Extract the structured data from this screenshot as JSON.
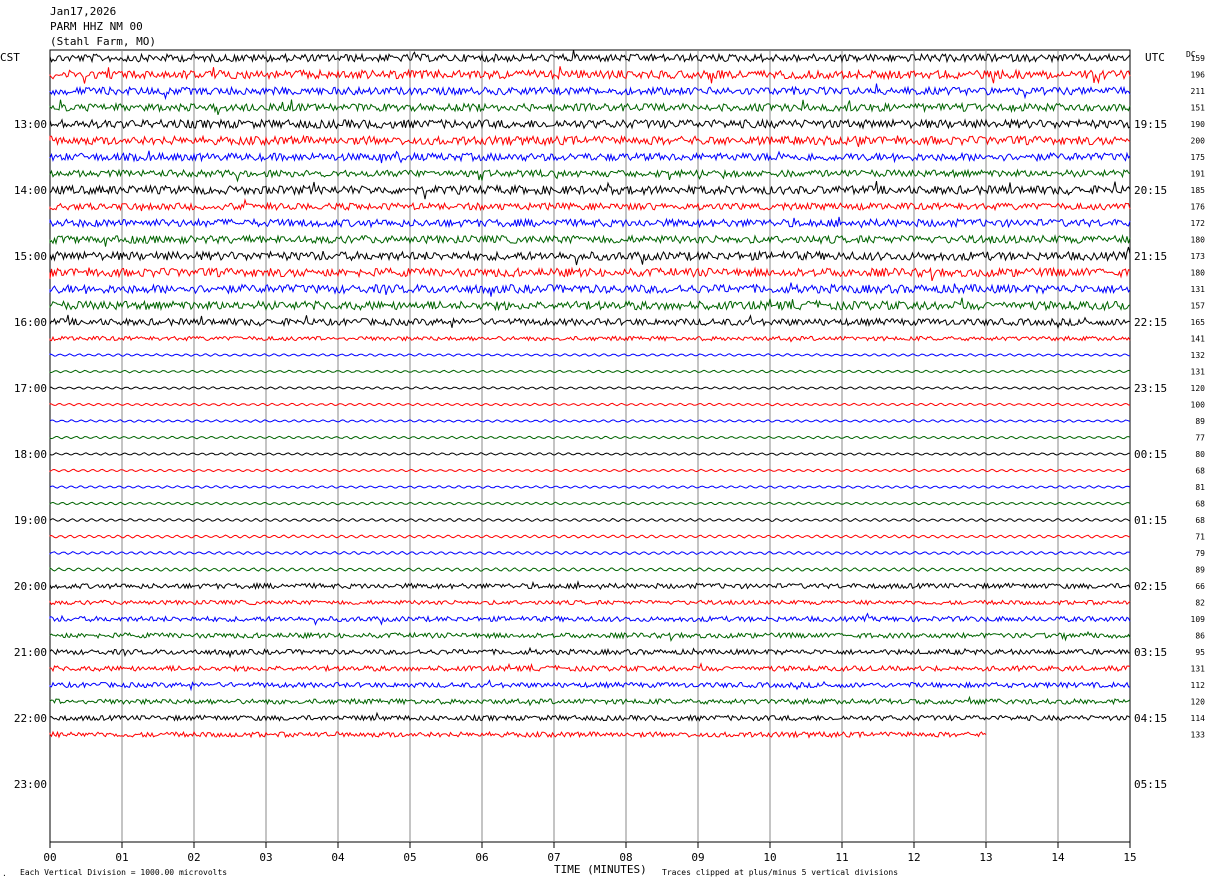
{
  "header": {
    "date": "Jan17,2026",
    "station": "PARM HHZ NM 00",
    "location": "(Stahl Farm, MO)"
  },
  "left_tz": "CST",
  "right_tz": "UTC",
  "dc_label": "DC",
  "footer": {
    "scale": "Each Vertical Division = 1000.00 microvolts",
    "xlabel": "TIME (MINUTES)",
    "clip": "Traces clipped at plus/minus 5 vertical divisions",
    "corner_mark": "."
  },
  "chart_data": {
    "type": "line",
    "title": "PARM HHZ NM 00 (Stahl Farm, MO) Jan17,2026",
    "xlabel": "TIME (MINUTES)",
    "x_range": [
      0,
      15
    ],
    "x_ticks": [
      "00",
      "01",
      "02",
      "03",
      "04",
      "05",
      "06",
      "07",
      "08",
      "09",
      "10",
      "11",
      "12",
      "13",
      "14",
      "15"
    ],
    "grid": "vertical lines every minute",
    "colors": [
      "#000000",
      "#ff0000",
      "#0000ff",
      "#006400"
    ],
    "left_hour_labels": [
      "13:00",
      "14:00",
      "15:00",
      "16:00",
      "17:00",
      "18:00",
      "19:00",
      "20:00",
      "21:00",
      "22:00",
      "23:00"
    ],
    "right_hour_labels": [
      "19:15",
      "20:15",
      "21:15",
      "22:15",
      "23:15",
      "00:15",
      "01:15",
      "02:15",
      "03:15",
      "04:15",
      "05:15"
    ],
    "traces_per_hour": 4,
    "trace_minutes": 15,
    "last_trace_minutes": 13,
    "dc_offsets": [
      159,
      196,
      211,
      151,
      190,
      200,
      175,
      191,
      185,
      176,
      172,
      180,
      173,
      180,
      131,
      157,
      165,
      141,
      132,
      131,
      120,
      100,
      89,
      77,
      80,
      68,
      81,
      68,
      68,
      71,
      79,
      89,
      66,
      82,
      109,
      86,
      95,
      131,
      112,
      120,
      114,
      133
    ],
    "amplitudes": [
      0.9,
      1.0,
      0.9,
      0.9,
      1.0,
      1.0,
      0.9,
      0.8,
      1.0,
      0.8,
      0.9,
      0.9,
      1.0,
      1.0,
      1.0,
      1.0,
      0.8,
      0.5,
      0.3,
      0.3,
      0.3,
      0.3,
      0.3,
      0.3,
      0.3,
      0.3,
      0.3,
      0.3,
      0.35,
      0.35,
      0.35,
      0.4,
      0.6,
      0.5,
      0.6,
      0.6,
      0.6,
      0.6,
      0.6,
      0.6,
      0.6,
      0.6
    ]
  }
}
